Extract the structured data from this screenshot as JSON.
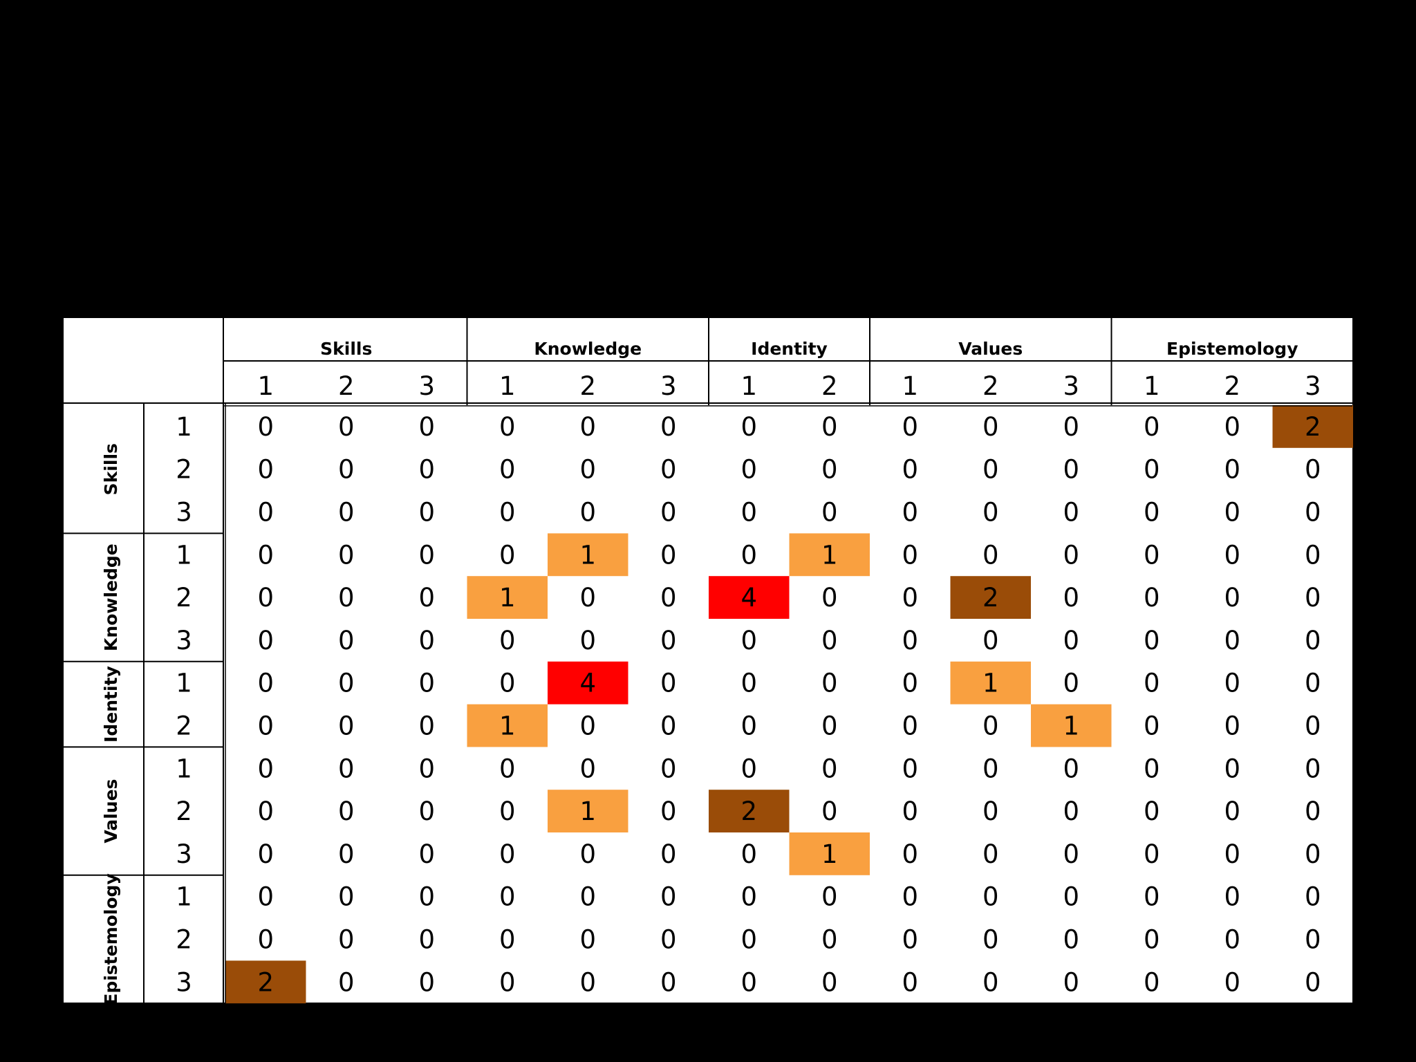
{
  "chart_data": {
    "type": "heatmap",
    "title": "",
    "column_groups": [
      {
        "name": "Skills",
        "levels": [
          "1",
          "2",
          "3"
        ]
      },
      {
        "name": "Knowledge",
        "levels": [
          "1",
          "2",
          "3"
        ]
      },
      {
        "name": "Identity",
        "levels": [
          "1",
          "2"
        ]
      },
      {
        "name": "Values",
        "levels": [
          "1",
          "2",
          "3"
        ]
      },
      {
        "name": "Epistemology",
        "levels": [
          "1",
          "2",
          "3"
        ]
      }
    ],
    "row_groups": [
      {
        "name": "Skills",
        "levels": [
          "1",
          "2",
          "3"
        ]
      },
      {
        "name": "Knowledge",
        "levels": [
          "1",
          "2",
          "3"
        ]
      },
      {
        "name": "Identity",
        "levels": [
          "1",
          "2"
        ]
      },
      {
        "name": "Values",
        "levels": [
          "1",
          "2",
          "3"
        ]
      },
      {
        "name": "Epistemology",
        "levels": [
          "1",
          "2",
          "3"
        ]
      }
    ],
    "values": [
      [
        0,
        0,
        0,
        0,
        0,
        0,
        0,
        0,
        0,
        0,
        0,
        0,
        0,
        2
      ],
      [
        0,
        0,
        0,
        0,
        0,
        0,
        0,
        0,
        0,
        0,
        0,
        0,
        0,
        0
      ],
      [
        0,
        0,
        0,
        0,
        0,
        0,
        0,
        0,
        0,
        0,
        0,
        0,
        0,
        0
      ],
      [
        0,
        0,
        0,
        0,
        1,
        0,
        0,
        1,
        0,
        0,
        0,
        0,
        0,
        0
      ],
      [
        0,
        0,
        0,
        1,
        0,
        0,
        4,
        0,
        0,
        2,
        0,
        0,
        0,
        0
      ],
      [
        0,
        0,
        0,
        0,
        0,
        0,
        0,
        0,
        0,
        0,
        0,
        0,
        0,
        0
      ],
      [
        0,
        0,
        0,
        0,
        4,
        0,
        0,
        0,
        0,
        1,
        0,
        0,
        0,
        0
      ],
      [
        0,
        0,
        0,
        1,
        0,
        0,
        0,
        0,
        0,
        0,
        1,
        0,
        0,
        0
      ],
      [
        0,
        0,
        0,
        0,
        0,
        0,
        0,
        0,
        0,
        0,
        0,
        0,
        0,
        0
      ],
      [
        0,
        0,
        0,
        0,
        1,
        0,
        2,
        0,
        0,
        0,
        0,
        0,
        0,
        0
      ],
      [
        0,
        0,
        0,
        0,
        0,
        0,
        0,
        1,
        0,
        0,
        0,
        0,
        0,
        0
      ],
      [
        0,
        0,
        0,
        0,
        0,
        0,
        0,
        0,
        0,
        0,
        0,
        0,
        0,
        0
      ],
      [
        0,
        0,
        0,
        0,
        0,
        0,
        0,
        0,
        0,
        0,
        0,
        0,
        0,
        0
      ],
      [
        2,
        0,
        0,
        0,
        0,
        0,
        0,
        0,
        0,
        0,
        0,
        0,
        0,
        0
      ]
    ],
    "color_scale": {
      "0": "#ffffff",
      "1": "#f9a040",
      "2": "#9a4c08",
      "4": "#ff0000"
    }
  }
}
